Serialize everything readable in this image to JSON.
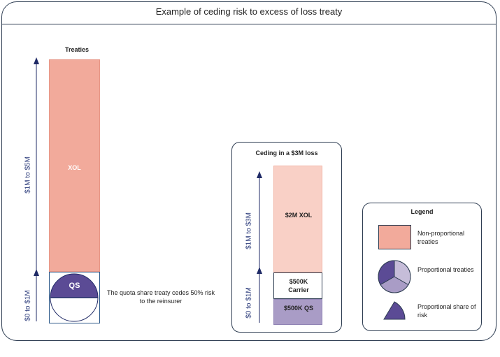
{
  "title": "Example of ceding risk to excess of loss treaty",
  "treaties": {
    "heading": "Treaties",
    "xol_label": "XOL",
    "qs_label": "QS",
    "axis_top": "$1M to $5M",
    "axis_bottom": "$0 to $1M",
    "note": "The quota share treaty cedes 50% risk to the reinsurer"
  },
  "ceding": {
    "heading": "Ceding in a $3M loss",
    "axis_top": "$1M to $3M",
    "axis_bottom": "$0 to $1M",
    "xol_label": "$2M XOL",
    "carrier_label": "$500K Carrier",
    "qs_label": "$500K QS"
  },
  "legend": {
    "heading": "Legend",
    "items": [
      {
        "label": "Non-proportional treaties",
        "icon": "pink-rectangle"
      },
      {
        "label": "Proportional treaties",
        "icon": "pie-icon"
      },
      {
        "label": "Proportional share of risk",
        "icon": "wedge-icon"
      }
    ]
  },
  "colors": {
    "xol": "#f2aa9b",
    "xol_light": "#f9d0c6",
    "qs": "#5b4b95",
    "qs_light": "#a99cc6",
    "frame": "#2e3d52",
    "axis": "#1f2a66"
  }
}
